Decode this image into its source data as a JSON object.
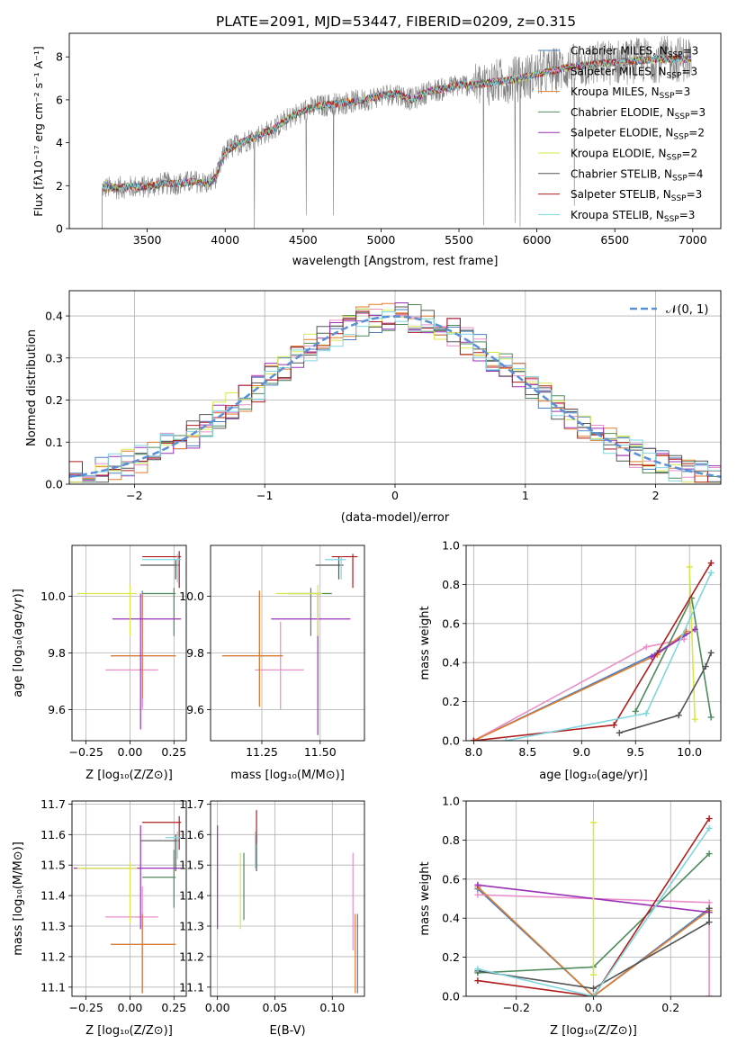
{
  "title": "PLATE=2091, MJD=53447, FIBERID=0209, z=0.315",
  "colors": {
    "Chabrier MILES": "#4a7fc1",
    "Salpeter MILES": "#e88fc9",
    "Kroupa MILES": "#e07b2c",
    "Chabrier ELODIE": "#4d8a5c",
    "Salpeter ELODIE": "#9b30b8",
    "Kroupa ELODIE": "#d8e84a",
    "Chabrier STELIB": "#555555",
    "Salpeter STELIB": "#b01c1c",
    "Kroupa STELIB": "#7fd6e0",
    "data": "#808080",
    "gaussian": "#5b8fd6",
    "grid": "#b0b0b0"
  },
  "legend1": [
    {
      "model": "Chabrier MILES",
      "label": "Chabrier MILES, N",
      "sub": "SSP",
      "tail": "=3"
    },
    {
      "model": "Salpeter MILES",
      "label": "Salpeter MILES, N",
      "sub": "SSP",
      "tail": "=3"
    },
    {
      "model": "Kroupa MILES",
      "label": "Kroupa MILES, N",
      "sub": "SSP",
      "tail": "=3"
    },
    {
      "model": "Chabrier ELODIE",
      "label": "Chabrier ELODIE, N",
      "sub": "SSP",
      "tail": "=3"
    },
    {
      "model": "Salpeter ELODIE",
      "label": "Salpeter ELODIE, N",
      "sub": "SSP",
      "tail": "=2"
    },
    {
      "model": "Kroupa ELODIE",
      "label": "Kroupa ELODIE, N",
      "sub": "SSP",
      "tail": "=2"
    },
    {
      "model": "Chabrier STELIB",
      "label": "Chabrier STELIB, N",
      "sub": "SSP",
      "tail": "=4"
    },
    {
      "model": "Salpeter STELIB",
      "label": "Salpeter STELIB, N",
      "sub": "SSP",
      "tail": "=3"
    },
    {
      "model": "Kroupa STELIB",
      "label": "Kroupa STELIB, N",
      "sub": "SSP",
      "tail": "=3"
    }
  ],
  "legend2": {
    "label": "𝒩(0, 1)"
  },
  "chart_data": [
    {
      "id": "spectrum",
      "type": "line",
      "xlabel": "wavelength [Angstrom, rest frame]",
      "ylabel": "Flux [fλ10⁻¹⁷ erg cm⁻² s⁻¹ A⁻¹]",
      "xlim": [
        3000,
        7180
      ],
      "ylim": [
        0,
        9.1
      ],
      "xticks": [
        3500,
        4000,
        4500,
        5000,
        5500,
        6000,
        6500,
        7000
      ],
      "yticks": [
        0,
        2,
        4,
        6,
        8
      ],
      "continuum": {
        "x": [
          3210,
          3300,
          3400,
          3500,
          3600,
          3700,
          3800,
          3900,
          3950,
          4000,
          4100,
          4200,
          4300,
          4400,
          4500,
          4600,
          4700,
          4800,
          4900,
          5000,
          5100,
          5200,
          5300,
          5400,
          5500,
          5600,
          5700,
          5800,
          5900,
          6000,
          6200,
          6400,
          6600,
          6800,
          7000
        ],
        "y": [
          1.9,
          1.9,
          1.95,
          1.95,
          2.1,
          2.1,
          2.2,
          2.1,
          2.5,
          3.6,
          4.0,
          4.3,
          4.6,
          5.1,
          5.5,
          5.7,
          5.8,
          5.9,
          6.0,
          6.2,
          6.3,
          6.0,
          6.4,
          6.5,
          6.7,
          6.7,
          6.8,
          6.9,
          7.0,
          7.2,
          7.5,
          7.7,
          7.8,
          7.9,
          7.9
        ]
      }
    },
    {
      "id": "residuals",
      "type": "histogram",
      "xlabel": "(data-model)/error",
      "ylabel": "Normed distribution",
      "xlim": [
        -2.5,
        2.5
      ],
      "ylim": [
        0,
        0.46
      ],
      "xticks": [
        -2,
        -1,
        0,
        1,
        2
      ],
      "yticks": [
        0.0,
        0.1,
        0.2,
        0.3,
        0.4
      ],
      "bin_width": 0.1,
      "series": [
        {
          "name": "𝒩(0, 1)",
          "type": "gaussian",
          "mu": 0,
          "sigma": 1
        }
      ]
    },
    {
      "id": "age_vs_Z",
      "type": "scatter",
      "xlabel": "Z [log₁₀(Z/Z⊙)]",
      "ylabel": "age [log₁₀(age/yr)]",
      "xlim": [
        -0.33,
        0.32
      ],
      "ylim": [
        9.49,
        10.18
      ],
      "xticks": [
        -0.25,
        0.0,
        0.25
      ],
      "yticks": [
        9.6,
        9.8,
        10.0
      ],
      "points": [
        {
          "model": "Chabrier MILES",
          "x": 0.07,
          "y": 9.79,
          "xerr": [
            0.18,
            0.19
          ],
          "yerr": [
            0.18,
            0.23
          ]
        },
        {
          "model": "Salpeter MILES",
          "x": 0.07,
          "y": 9.74,
          "xerr": [
            0.21,
            0.09
          ],
          "yerr": [
            0.14,
            0.17
          ]
        },
        {
          "model": "Kroupa MILES",
          "x": 0.07,
          "y": 9.79,
          "xerr": [
            0.18,
            0.19
          ],
          "yerr": [
            0.15,
            0.22
          ]
        },
        {
          "model": "Chabrier ELODIE",
          "x": 0.25,
          "y": 10.01,
          "xerr": [
            0.18,
            0.01
          ],
          "yerr": [
            0.15,
            0.02
          ]
        },
        {
          "model": "Salpeter ELODIE",
          "x": 0.06,
          "y": 9.92,
          "xerr": [
            0.16,
            0.23
          ],
          "yerr": [
            0.39,
            0.09
          ]
        },
        {
          "model": "Kroupa ELODIE",
          "x": 0.0,
          "y": 10.01,
          "xerr": [
            0.3,
            0.04
          ],
          "yerr": [
            0.15,
            0.03
          ]
        },
        {
          "model": "Chabrier STELIB",
          "x": 0.26,
          "y": 10.11,
          "xerr": [
            0.2,
            0.02
          ],
          "yerr": [
            0.05,
            0.02
          ]
        },
        {
          "model": "Salpeter STELIB",
          "x": 0.28,
          "y": 10.14,
          "xerr": [
            0.21,
            0.01
          ],
          "yerr": [
            0.11,
            0.02
          ]
        },
        {
          "model": "Kroupa STELIB",
          "x": 0.27,
          "y": 10.13,
          "xerr": [
            0.2,
            0.02
          ],
          "yerr": [
            0.08,
            0.02
          ]
        }
      ]
    },
    {
      "id": "age_vs_mass",
      "type": "scatter",
      "xlabel": "mass [log₁₀(M/M⊙)]",
      "xlim": [
        11.03,
        11.69
      ],
      "ylim": [
        9.49,
        10.18
      ],
      "xticks": [
        11.25,
        11.5
      ],
      "yticks": [
        9.6,
        9.8,
        10.0
      ],
      "points": [
        {
          "model": "Chabrier MILES",
          "x": 11.24,
          "y": 9.79,
          "xerr": [
            0.16,
            0.1
          ],
          "yerr": [
            0.18,
            0.23
          ]
        },
        {
          "model": "Salpeter MILES",
          "x": 11.33,
          "y": 9.74,
          "xerr": [
            0.11,
            0.1
          ],
          "yerr": [
            0.14,
            0.17
          ]
        },
        {
          "model": "Kroupa MILES",
          "x": 11.24,
          "y": 9.79,
          "xerr": [
            0.16,
            0.1
          ],
          "yerr": [
            0.18,
            0.23
          ]
        },
        {
          "model": "Chabrier ELODIE",
          "x": 11.46,
          "y": 10.01,
          "xerr": [
            0.1,
            0.09
          ],
          "yerr": [
            0.15,
            0.02
          ]
        },
        {
          "model": "Salpeter ELODIE",
          "x": 11.49,
          "y": 9.92,
          "xerr": [
            0.2,
            0.14
          ],
          "yerr": [
            0.41,
            0.09
          ]
        },
        {
          "model": "Kroupa ELODIE",
          "x": 11.49,
          "y": 10.01,
          "xerr": [
            0.18,
            0.02
          ],
          "yerr": [
            0.15,
            0.03
          ]
        },
        {
          "model": "Chabrier STELIB",
          "x": 11.58,
          "y": 10.11,
          "xerr": [
            0.1,
            0.02
          ],
          "yerr": [
            0.05,
            0.03
          ]
        },
        {
          "model": "Salpeter STELIB",
          "x": 11.64,
          "y": 10.14,
          "xerr": [
            0.09,
            0.02
          ],
          "yerr": [
            0.11,
            0.01
          ]
        },
        {
          "model": "Kroupa STELIB",
          "x": 11.59,
          "y": 10.13,
          "xerr": [
            0.07,
            0.02
          ],
          "yerr": [
            0.07,
            0.01
          ]
        }
      ]
    },
    {
      "id": "weight_vs_age",
      "type": "line",
      "xlabel": "age [log₁₀(age/yr)]",
      "ylabel": "mass weight",
      "xlim": [
        7.93,
        10.29
      ],
      "ylim": [
        0,
        1.0
      ],
      "xticks": [
        8.0,
        8.5,
        9.0,
        9.5,
        10.0
      ],
      "yticks": [
        0.0,
        0.2,
        0.4,
        0.6,
        0.8,
        1.0
      ],
      "series": [
        {
          "model": "Chabrier MILES",
          "x": [
            8.0,
            9.7,
            9.97
          ],
          "y": [
            0.0,
            0.45,
            0.55
          ]
        },
        {
          "model": "Salpeter MILES",
          "x": [
            8.0,
            9.6,
            9.95
          ],
          "y": [
            0.0,
            0.48,
            0.52
          ]
        },
        {
          "model": "Kroupa MILES",
          "x": [
            8.0,
            9.7,
            9.97
          ],
          "y": [
            0.0,
            0.44,
            0.56
          ]
        },
        {
          "model": "Chabrier ELODIE",
          "x": [
            9.5,
            10.02,
            10.2
          ],
          "y": [
            0.15,
            0.73,
            0.12
          ]
        },
        {
          "model": "Salpeter ELODIE",
          "x": [
            9.65,
            10.05
          ],
          "y": [
            0.43,
            0.57
          ]
        },
        {
          "model": "Kroupa ELODIE",
          "x": [
            10.0,
            10.05
          ],
          "y": [
            0.89,
            0.11
          ]
        },
        {
          "model": "Chabrier STELIB",
          "x": [
            9.35,
            9.9,
            10.15,
            10.2
          ],
          "y": [
            0.04,
            0.13,
            0.38,
            0.45
          ]
        },
        {
          "model": "Salpeter STELIB",
          "x": [
            8.0,
            9.3,
            10.2
          ],
          "y": [
            0.0,
            0.08,
            0.91
          ]
        },
        {
          "model": "Kroupa STELIB",
          "x": [
            8.3,
            9.6,
            10.2
          ],
          "y": [
            0.0,
            0.14,
            0.86
          ]
        }
      ]
    },
    {
      "id": "mass_vs_Z",
      "type": "scatter",
      "xlabel": "Z [log₁₀(Z/Z⊙)]",
      "ylabel": "mass [log₁₀(M/M⊙)]",
      "xlim": [
        -0.33,
        0.32
      ],
      "ylim": [
        11.07,
        11.71
      ],
      "xticks": [
        -0.25,
        0.0,
        0.25
      ],
      "yticks": [
        11.1,
        11.2,
        11.3,
        11.4,
        11.5,
        11.6,
        11.7
      ],
      "points": [
        {
          "model": "Chabrier MILES",
          "x": 0.07,
          "y": 11.24,
          "xerr": [
            0.18,
            0.19
          ],
          "yerr": [
            0.16,
            0.1
          ]
        },
        {
          "model": "Salpeter MILES",
          "x": 0.07,
          "y": 11.33,
          "xerr": [
            0.21,
            0.09
          ],
          "yerr": [
            0.11,
            0.1
          ]
        },
        {
          "model": "Kroupa MILES",
          "x": 0.07,
          "y": 11.24,
          "xerr": [
            0.18,
            0.19
          ],
          "yerr": [
            0.16,
            0.1
          ]
        },
        {
          "model": "Chabrier ELODIE",
          "x": 0.25,
          "y": 11.46,
          "xerr": [
            0.18,
            0.01
          ],
          "yerr": [
            0.1,
            0.09
          ]
        },
        {
          "model": "Salpeter ELODIE",
          "x": 0.06,
          "y": 11.49,
          "xerr": [
            0.38,
            0.23
          ],
          "yerr": [
            0.2,
            0.14
          ]
        },
        {
          "model": "Kroupa ELODIE",
          "x": 0.0,
          "y": 11.49,
          "xerr": [
            0.3,
            0.04
          ],
          "yerr": [
            0.18,
            0.02
          ]
        },
        {
          "model": "Chabrier STELIB",
          "x": 0.26,
          "y": 11.58,
          "xerr": [
            0.2,
            0.02
          ],
          "yerr": [
            0.1,
            0.02
          ]
        },
        {
          "model": "Salpeter STELIB",
          "x": 0.28,
          "y": 11.64,
          "xerr": [
            0.21,
            0.01
          ],
          "yerr": [
            0.09,
            0.02
          ]
        },
        {
          "model": "Kroupa STELIB",
          "x": 0.27,
          "y": 11.59,
          "xerr": [
            0.07,
            0.02
          ],
          "yerr": [
            0.07,
            0.02
          ]
        }
      ]
    },
    {
      "id": "mass_vs_ebv",
      "type": "scatter",
      "xlabel": "E(B-V)",
      "xlim": [
        -0.006,
        0.128
      ],
      "ylim": [
        11.07,
        11.71
      ],
      "xticks": [
        0.0,
        0.05,
        0.1
      ],
      "yticks": [
        11.1,
        11.2,
        11.3,
        11.4,
        11.5,
        11.6,
        11.7
      ],
      "points": [
        {
          "model": "Chabrier MILES",
          "x": 0.122,
          "y": 11.24,
          "yerr": [
            0.16,
            0.1
          ]
        },
        {
          "model": "Salpeter MILES",
          "x": 0.118,
          "y": 11.33,
          "yerr": [
            0.11,
            0.21
          ]
        },
        {
          "model": "Kroupa MILES",
          "x": 0.12,
          "y": 11.24,
          "yerr": [
            0.16,
            0.1
          ]
        },
        {
          "model": "Chabrier ELODIE",
          "x": 0.023,
          "y": 11.46,
          "yerr": [
            0.14,
            0.08
          ]
        },
        {
          "model": "Salpeter ELODIE",
          "x": 0.0,
          "y": 11.49,
          "yerr": [
            0.2,
            0.14
          ]
        },
        {
          "model": "Kroupa ELODIE",
          "x": 0.02,
          "y": 11.49,
          "yerr": [
            0.2,
            0.05
          ]
        },
        {
          "model": "Chabrier STELIB",
          "x": 0.034,
          "y": 11.58,
          "yerr": [
            0.1,
            0.02
          ]
        },
        {
          "model": "Salpeter STELIB",
          "x": 0.034,
          "y": 11.64,
          "yerr": [
            0.07,
            0.04
          ]
        },
        {
          "model": "Kroupa STELIB",
          "x": 0.033,
          "y": 11.59,
          "yerr": [
            0.1,
            0.02
          ]
        }
      ]
    },
    {
      "id": "weight_vs_Z",
      "type": "line",
      "xlabel": "Z [log₁₀(Z/Z⊙)]",
      "ylabel": "mass weight",
      "xlim": [
        -0.33,
        0.33
      ],
      "ylim": [
        0,
        1.0
      ],
      "xticks": [
        -0.2,
        0.0,
        0.2
      ],
      "yticks": [
        0.0,
        0.2,
        0.4,
        0.6,
        0.8,
        1.0
      ],
      "series": [
        {
          "model": "Chabrier MILES",
          "x": [
            -0.3,
            0.0,
            0.3
          ],
          "y": [
            0.55,
            0.0,
            0.45
          ]
        },
        {
          "model": "Salpeter MILES",
          "x": [
            -0.3,
            0.3,
            0.3
          ],
          "y": [
            0.52,
            0.48,
            0.0
          ]
        },
        {
          "model": "Kroupa MILES",
          "x": [
            -0.3,
            0.0,
            0.3
          ],
          "y": [
            0.56,
            0.0,
            0.44
          ]
        },
        {
          "model": "Chabrier ELODIE",
          "x": [
            -0.3,
            0.0,
            0.3
          ],
          "y": [
            0.12,
            0.15,
            0.73
          ]
        },
        {
          "model": "Salpeter ELODIE",
          "x": [
            -0.3,
            0.3
          ],
          "y": [
            0.57,
            0.43
          ]
        },
        {
          "model": "Kroupa ELODIE",
          "x": [
            0.0,
            0.0
          ],
          "y": [
            0.89,
            0.11
          ]
        },
        {
          "model": "Chabrier STELIB",
          "x": [
            -0.3,
            0.0,
            0.3,
            0.3
          ],
          "y": [
            0.13,
            0.04,
            0.38,
            0.45
          ]
        },
        {
          "model": "Salpeter STELIB",
          "x": [
            -0.3,
            0.0,
            0.3
          ],
          "y": [
            0.08,
            0.0,
            0.91
          ]
        },
        {
          "model": "Kroupa STELIB",
          "x": [
            -0.3,
            0.0,
            0.3
          ],
          "y": [
            0.14,
            0.0,
            0.86
          ]
        }
      ]
    }
  ]
}
